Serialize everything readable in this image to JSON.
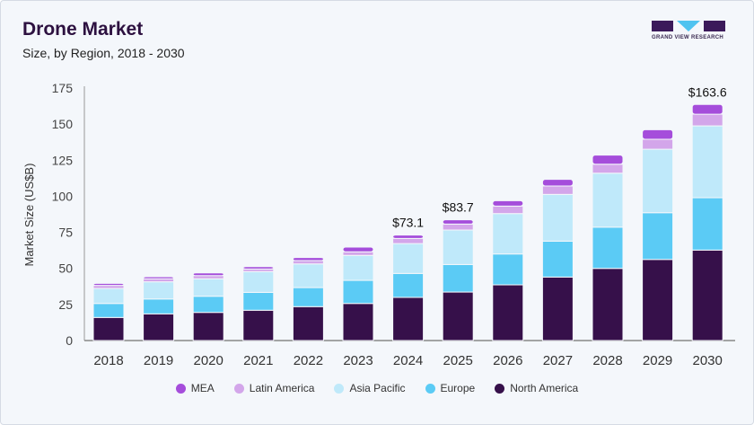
{
  "header": {
    "title": "Drone Market",
    "subtitle": "Size, by Region, 2018 - 2030",
    "logo_text": "GRAND VIEW RESEARCH"
  },
  "chart_data": {
    "type": "bar",
    "stacked": true,
    "title": "Drone Market",
    "subtitle": "Size, by Region, 2018 - 2030",
    "xlabel": "",
    "ylabel": "Market Size (US$B)",
    "ylim": [
      0,
      175
    ],
    "yticks": [
      0,
      25,
      50,
      75,
      100,
      125,
      150,
      175
    ],
    "grid": false,
    "legend_position": "bottom",
    "categories": [
      "2018",
      "2019",
      "2020",
      "2021",
      "2022",
      "2023",
      "2024",
      "2025",
      "2026",
      "2027",
      "2028",
      "2029",
      "2030"
    ],
    "series": [
      {
        "name": "North America",
        "color": "#36104a",
        "values": [
          16.0,
          18.5,
          19.5,
          21.0,
          23.5,
          25.7,
          29.9,
          33.6,
          38.6,
          44.0,
          50.0,
          56.2,
          62.7
        ]
      },
      {
        "name": "Europe",
        "color": "#5bcbf5",
        "values": [
          9.7,
          10.3,
          11.2,
          12.4,
          13.2,
          16.0,
          16.6,
          19.1,
          21.4,
          24.9,
          28.6,
          32.4,
          36.3
        ]
      },
      {
        "name": "Asia Pacific",
        "color": "#bfe9fa",
        "values": [
          10.4,
          11.9,
          12.1,
          14.4,
          16.4,
          17.3,
          20.7,
          23.9,
          28.0,
          32.4,
          37.4,
          44.0,
          49.8
        ]
      },
      {
        "name": "Latin America",
        "color": "#d3a6ea",
        "values": [
          2.1,
          2.1,
          2.2,
          1.8,
          2.3,
          2.5,
          3.6,
          4.1,
          5.2,
          5.8,
          6.2,
          6.9,
          8.1
        ]
      },
      {
        "name": "MEA",
        "color": "#a54ddb",
        "values": [
          1.4,
          1.4,
          1.9,
          1.6,
          2.1,
          3.3,
          2.3,
          3.0,
          3.7,
          4.6,
          6.3,
          6.6,
          6.7
        ]
      }
    ],
    "annotations": [
      {
        "category": "2024",
        "text": "$73.1"
      },
      {
        "category": "2025",
        "text": "$83.7"
      },
      {
        "category": "2030",
        "text": "$163.6"
      }
    ],
    "legend_order": [
      "MEA",
      "Latin America",
      "Asia Pacific",
      "Europe",
      "North America"
    ]
  }
}
